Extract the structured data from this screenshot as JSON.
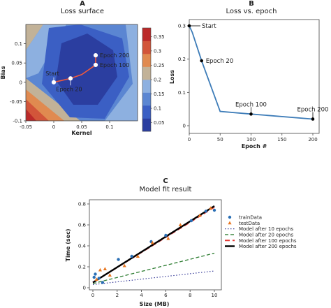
{
  "chart_data": [
    {
      "panel": "A",
      "type": "contour",
      "title": "Loss surface",
      "xlabel": "Kernel",
      "ylabel": "Bias",
      "xlim": [
        -0.05,
        0.15
      ],
      "ylim": [
        -0.1,
        0.15
      ],
      "xticks": [
        "-0.05",
        "0",
        "0.05",
        "0.1"
      ],
      "yticks": [
        "-0.1",
        "-0.05",
        "0",
        "0.05",
        "0.1"
      ],
      "colorbar_ticks": [
        "0.05",
        "0.1",
        "0.15",
        "0.2",
        "0.25",
        "0.3",
        "0.35"
      ],
      "colorbar_colors": [
        "#2b3ea0",
        "#3b5fc4",
        "#5b86d2",
        "#8db0e0",
        "#c2b298",
        "#e08a50",
        "#d2553a",
        "#bb2a2a"
      ],
      "path": [
        {
          "label": "Start",
          "x": 0.0,
          "y": 0.0
        },
        {
          "label": "Epoch 20",
          "x": 0.03,
          "y": 0.01
        },
        {
          "label": "",
          "x": 0.05,
          "y": 0.02
        },
        {
          "label": "Epoch 100",
          "x": 0.075,
          "y": 0.045
        },
        {
          "label": "Epoch 200",
          "x": 0.075,
          "y": 0.07
        }
      ]
    },
    {
      "panel": "B",
      "type": "line",
      "title": "Loss vs. epoch",
      "xlabel": "Epoch #",
      "ylabel": "Loss",
      "xlim": [
        0,
        200
      ],
      "ylim": [
        0,
        0.3
      ],
      "xticks": [
        "0",
        "50",
        "100",
        "150",
        "200"
      ],
      "yticks": [
        "0",
        "0.1",
        "0.2",
        "0.3"
      ],
      "x": [
        0,
        5,
        20,
        50,
        100,
        200
      ],
      "y": [
        0.3,
        0.28,
        0.195,
        0.043,
        0.035,
        0.02
      ],
      "annotations": [
        {
          "label": "Start",
          "x": 0,
          "y": 0.3
        },
        {
          "label": "Epoch 20",
          "x": 20,
          "y": 0.195
        },
        {
          "label": "Epoch 100",
          "x": 100,
          "y": 0.035
        },
        {
          "label": "Epoch 200",
          "x": 200,
          "y": 0.02
        }
      ]
    },
    {
      "panel": "C",
      "type": "scatter",
      "title": "Model fit result",
      "xlabel": "Size (MB)",
      "ylabel": "Time (sec)",
      "xlim": [
        0,
        10
      ],
      "ylim": [
        0,
        0.8
      ],
      "xticks": [
        "0",
        "2",
        "4",
        "6",
        "8",
        "10"
      ],
      "yticks": [
        "0",
        "0.2",
        "0.4",
        "0.6",
        "0.8"
      ],
      "series": [
        {
          "name": "trainData",
          "kind": "points",
          "color": "#2a6fb5",
          "x": [
            0.1,
            0.2,
            0.5,
            0.8,
            2.1,
            3.2,
            4.8,
            6.0,
            8.1,
            9.3,
            10.0
          ],
          "y": [
            0.1,
            0.13,
            0.09,
            0.05,
            0.27,
            0.3,
            0.44,
            0.5,
            0.64,
            0.73,
            0.74
          ]
        },
        {
          "name": "testData",
          "kind": "points",
          "color": "#e87722",
          "x": [
            0.3,
            0.6,
            1.0,
            1.4,
            2.6,
            3.7,
            4.9,
            6.2,
            7.2,
            8.8,
            9.7
          ],
          "y": [
            0.08,
            0.17,
            0.18,
            0.12,
            0.21,
            0.3,
            0.43,
            0.47,
            0.6,
            0.69,
            0.76
          ]
        },
        {
          "name": "Model after 10 epochs",
          "kind": "line",
          "color": "#3b3f9a",
          "dash": "1.5,2.5",
          "width": 1.2,
          "x": [
            0,
            10
          ],
          "y": [
            0.03,
            0.16
          ]
        },
        {
          "name": "Model after 20 epochs",
          "kind": "line",
          "color": "#2e7d32",
          "dash": "5,3",
          "width": 1.3,
          "x": [
            0,
            10
          ],
          "y": [
            0.04,
            0.33
          ]
        },
        {
          "name": "Model after 100 epochs",
          "kind": "line",
          "color": "#e53935",
          "dash": "7,4",
          "width": 2,
          "x": [
            0,
            10
          ],
          "y": [
            0.05,
            0.77
          ]
        },
        {
          "name": "Model after 200 epochs",
          "kind": "line",
          "color": "#000000",
          "dash": "",
          "width": 2.4,
          "x": [
            0,
            10
          ],
          "y": [
            0.05,
            0.78
          ]
        }
      ]
    }
  ]
}
